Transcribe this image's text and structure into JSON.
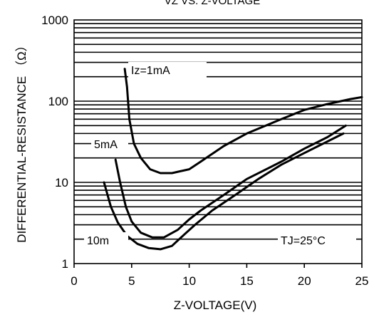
{
  "chart_data": {
    "type": "line",
    "title": "VZ VS. Z-VOLTAGE",
    "xlabel": "Z-VOLTAGE(V)",
    "ylabel": "DIFFERENTIAL-RESISTANCE （Ω）",
    "xlim": [
      0,
      25
    ],
    "ylim": [
      1,
      1000
    ],
    "yscale": "log",
    "grid": true,
    "x_ticks": [
      0,
      5,
      10,
      15,
      20,
      25
    ],
    "x_tick_labels": [
      "0",
      "5",
      "10",
      "15",
      "20",
      "25"
    ],
    "y_ticks": [
      1,
      10,
      100,
      1000
    ],
    "y_tick_labels": [
      "1",
      "10",
      "100",
      "1000"
    ],
    "series": [
      {
        "name": "Iz=1mA",
        "points": [
          [
            4.4,
            250
          ],
          [
            4.6,
            150
          ],
          [
            4.8,
            60
          ],
          [
            5.2,
            30
          ],
          [
            5.8,
            20
          ],
          [
            6.6,
            14.5
          ],
          [
            7.5,
            13
          ],
          [
            8.5,
            13
          ],
          [
            10,
            14.5
          ],
          [
            11,
            18
          ],
          [
            13,
            28
          ],
          [
            15,
            40
          ],
          [
            18,
            60
          ],
          [
            20,
            78
          ],
          [
            22,
            92
          ],
          [
            24,
            106
          ],
          [
            25,
            112
          ]
        ]
      },
      {
        "name": "5mA",
        "points": [
          [
            3.6,
            19
          ],
          [
            4.0,
            10
          ],
          [
            4.5,
            5
          ],
          [
            5.0,
            3.3
          ],
          [
            5.8,
            2.4
          ],
          [
            6.8,
            2.1
          ],
          [
            7.8,
            2.1
          ],
          [
            9,
            2.6
          ],
          [
            10,
            3.5
          ],
          [
            11,
            4.5
          ],
          [
            13,
            7
          ],
          [
            15,
            11
          ],
          [
            18,
            18
          ],
          [
            20,
            26
          ],
          [
            22,
            36
          ],
          [
            23.6,
            50
          ]
        ]
      },
      {
        "name": "10m",
        "points": [
          [
            2.6,
            10
          ],
          [
            3.2,
            5
          ],
          [
            3.8,
            3.2
          ],
          [
            4.6,
            2.2
          ],
          [
            5.5,
            1.75
          ],
          [
            6.5,
            1.55
          ],
          [
            7.5,
            1.5
          ],
          [
            8.5,
            1.65
          ],
          [
            9.6,
            2.3
          ],
          [
            10.5,
            3
          ],
          [
            12,
            4.5
          ],
          [
            14,
            7
          ],
          [
            16,
            11
          ],
          [
            18,
            16.5
          ],
          [
            20,
            23
          ],
          [
            23.4,
            40
          ]
        ]
      }
    ],
    "annotations": [
      "Iz=1mA",
      "5mA",
      "10m",
      "TJ=25°C"
    ]
  }
}
